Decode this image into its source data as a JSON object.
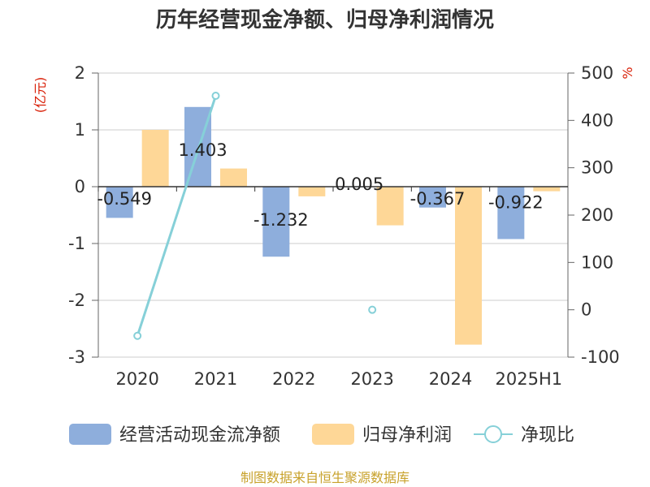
{
  "chart_data": {
    "type": "bar",
    "title": "历年经营现金净额、归母净利润情况",
    "categories": [
      "2020",
      "2021",
      "2022",
      "2023",
      "2024",
      "2025H1"
    ],
    "y_left": {
      "unit": "(亿元)",
      "ylim": [
        -3,
        2
      ],
      "ticks": [
        2,
        1,
        0,
        -1,
        -2,
        -3
      ]
    },
    "y_right": {
      "unit": "%",
      "ylim": [
        -100,
        500
      ],
      "ticks": [
        500,
        400,
        300,
        200,
        100,
        0,
        -100
      ]
    },
    "series": [
      {
        "name": "经营活动现金流净额",
        "type": "bar",
        "axis": "left",
        "color": "#8eaedc",
        "values": [
          -0.549,
          1.403,
          -1.232,
          0.005,
          -0.367,
          -0.922
        ],
        "labels": [
          "-0.549",
          "1.403",
          "-1.232",
          "0.005",
          "-0.367",
          "-0.922"
        ]
      },
      {
        "name": "归母净利润",
        "type": "bar",
        "axis": "left",
        "color": "#fed797",
        "values": [
          1.0,
          0.32,
          -0.17,
          -0.68,
          -2.78,
          -0.08
        ]
      },
      {
        "name": "净现比",
        "type": "line",
        "axis": "right",
        "color": "#86d0d8",
        "values": [
          -55,
          452,
          null,
          0,
          null,
          null
        ]
      }
    ],
    "legend_position": "bottom",
    "grid": true
  },
  "source": "制图数据来自恒生聚源数据库"
}
